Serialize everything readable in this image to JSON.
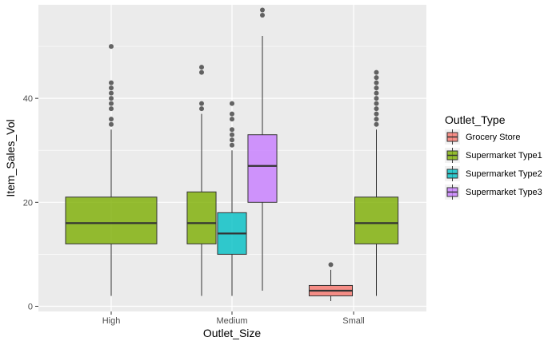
{
  "chart_data": {
    "type": "boxplot",
    "xlabel": "Outlet_Size",
    "ylabel": "Item_Sales_Vol",
    "ylim": [
      -1,
      58
    ],
    "y_ticks": [
      0,
      20,
      40
    ],
    "categories": [
      "High",
      "Medium",
      "Small"
    ],
    "legend": {
      "title": "Outlet_Type",
      "position": "right",
      "entries": [
        "Grocery Store",
        "Supermarket Type1",
        "Supermarket Type2",
        "Supermarket Type3"
      ]
    },
    "colors": {
      "Grocery Store": "#F8766D",
      "Supermarket Type1": "#7CAE00",
      "Supermarket Type2": "#00BFC4",
      "Supermarket Type3": "#C77CFF",
      "panel_background": "#EBEBEB",
      "grid": "#FFFFFF"
    },
    "boxes": [
      {
        "category": "High",
        "type": "Supermarket Type1",
        "whisker_low": 2,
        "q1": 12,
        "median": 16,
        "q3": 21,
        "whisker_high": 34,
        "outliers": [
          35,
          36,
          38,
          39,
          40,
          41,
          42,
          43,
          50
        ]
      },
      {
        "category": "Medium",
        "type": "Supermarket Type1",
        "whisker_low": 2,
        "q1": 12,
        "median": 16,
        "q3": 22,
        "whisker_high": 37,
        "outliers": [
          38,
          39,
          45,
          46
        ]
      },
      {
        "category": "Medium",
        "type": "Supermarket Type2",
        "whisker_low": 2,
        "q1": 10,
        "median": 14,
        "q3": 18,
        "whisker_high": 30,
        "outliers": [
          31,
          32,
          33,
          34,
          36,
          37,
          39
        ]
      },
      {
        "category": "Medium",
        "type": "Supermarket Type3",
        "whisker_low": 3,
        "q1": 20,
        "median": 27,
        "q3": 33,
        "whisker_high": 52,
        "outliers": [
          56,
          57
        ]
      },
      {
        "category": "Small",
        "type": "Grocery Store",
        "whisker_low": 1,
        "q1": 2,
        "median": 3,
        "q3": 4,
        "whisker_high": 7,
        "outliers": [
          8
        ]
      },
      {
        "category": "Small",
        "type": "Supermarket Type1",
        "whisker_low": 2,
        "q1": 12,
        "median": 16,
        "q3": 21,
        "whisker_high": 34,
        "outliers": [
          35,
          36,
          37,
          38,
          39,
          40,
          41,
          42,
          43,
          44,
          45
        ]
      }
    ]
  }
}
